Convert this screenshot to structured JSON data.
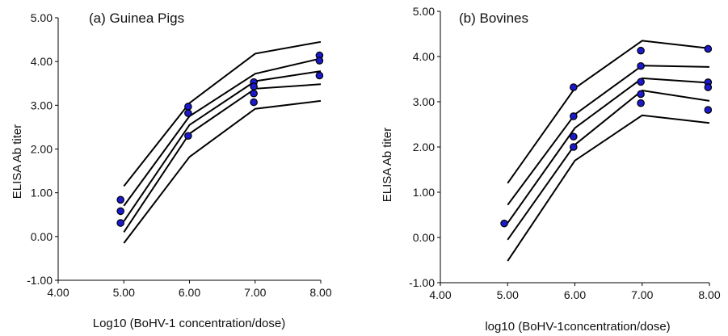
{
  "chart_data": [
    {
      "type": "line",
      "title": "(a) Guinea Pigs",
      "xlabel": "Log10 (BoHV-1 concentration/dose)",
      "ylabel": "ELISA Ab titer",
      "xlim": [
        4.0,
        8.0
      ],
      "ylim": [
        -1.0,
        5.0
      ],
      "xticks": [
        "4.00",
        "5.00",
        "6.00",
        "7.00",
        "8.00"
      ],
      "yticks": [
        "-1.00",
        "0.00",
        "1.00",
        "2.00",
        "3.00",
        "4.00",
        "5.00"
      ],
      "grid": false,
      "x": [
        5.0,
        6.0,
        7.0,
        8.0
      ],
      "lines": [
        [
          1.15,
          3.05,
          4.18,
          4.45
        ],
        [
          0.7,
          2.75,
          3.72,
          4.07
        ],
        [
          0.35,
          2.55,
          3.55,
          3.78
        ],
        [
          0.1,
          2.35,
          3.38,
          3.48
        ],
        [
          -0.15,
          1.82,
          2.92,
          3.1
        ]
      ],
      "points": [
        {
          "x": 4.95,
          "y": 0.84
        },
        {
          "x": 4.95,
          "y": 0.58
        },
        {
          "x": 4.95,
          "y": 0.31
        },
        {
          "x": 5.98,
          "y": 2.97
        },
        {
          "x": 5.98,
          "y": 2.82
        },
        {
          "x": 5.98,
          "y": 2.3
        },
        {
          "x": 6.98,
          "y": 3.53
        },
        {
          "x": 6.98,
          "y": 3.43
        },
        {
          "x": 6.98,
          "y": 3.27
        },
        {
          "x": 6.98,
          "y": 3.07
        },
        {
          "x": 7.98,
          "y": 4.14
        },
        {
          "x": 7.98,
          "y": 4.02
        },
        {
          "x": 7.98,
          "y": 3.68
        }
      ]
    },
    {
      "type": "line",
      "title": "(b) Bovines",
      "xlabel": "log10 (BoHV-1concentration/dose)",
      "ylabel": "ELISA Ab titer",
      "xlim": [
        4.0,
        8.0
      ],
      "ylim": [
        -1.0,
        5.0
      ],
      "xticks": [
        "4.00",
        "5.00",
        "6.00",
        "7.00",
        "8.00"
      ],
      "yticks": [
        "-1.00",
        "0.00",
        "1.00",
        "2.00",
        "3.00",
        "4.00",
        "5.00"
      ],
      "grid": false,
      "x": [
        5.0,
        6.0,
        7.0,
        8.0
      ],
      "lines": [
        [
          1.2,
          3.3,
          4.35,
          4.18
        ],
        [
          0.72,
          2.72,
          3.8,
          3.77
        ],
        [
          0.32,
          2.42,
          3.52,
          3.42
        ],
        [
          -0.05,
          2.05,
          3.25,
          3.02
        ],
        [
          -0.52,
          1.7,
          2.7,
          2.53
        ]
      ],
      "points": [
        {
          "x": 4.95,
          "y": 0.31
        },
        {
          "x": 5.98,
          "y": 3.32
        },
        {
          "x": 5.98,
          "y": 2.68
        },
        {
          "x": 5.98,
          "y": 2.23
        },
        {
          "x": 5.98,
          "y": 2.0
        },
        {
          "x": 6.98,
          "y": 4.13
        },
        {
          "x": 6.98,
          "y": 3.79
        },
        {
          "x": 6.98,
          "y": 3.44
        },
        {
          "x": 6.98,
          "y": 3.17
        },
        {
          "x": 6.98,
          "y": 2.97
        },
        {
          "x": 7.98,
          "y": 4.17
        },
        {
          "x": 7.98,
          "y": 3.43
        },
        {
          "x": 7.98,
          "y": 3.32
        },
        {
          "x": 7.98,
          "y": 2.82
        }
      ]
    }
  ],
  "colors": {
    "line": "#000000",
    "marker_fill": "#1a1acc",
    "marker_stroke": "#000000"
  }
}
